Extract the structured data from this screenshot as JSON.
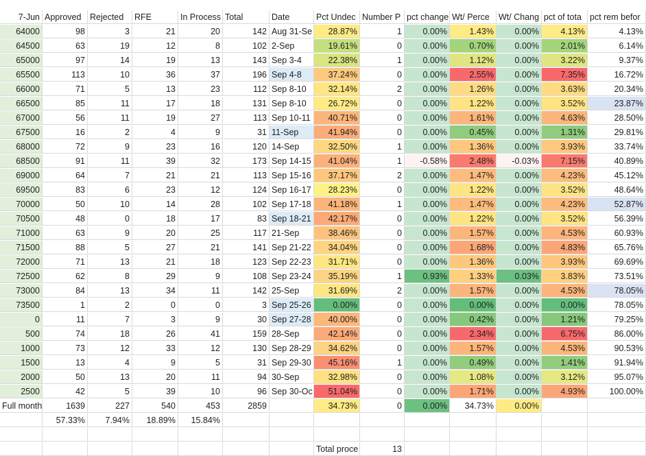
{
  "header": [
    "7-Jun",
    "Approved",
    "Rejected",
    "RFE",
    "In Process",
    "Total",
    "Date",
    "Pct Undec",
    "Number P",
    "pct change",
    "Wt/ Perce",
    "Wt/ Chang",
    "pct of tota",
    "pct rem befor"
  ],
  "rows": [
    [
      "64000",
      "98",
      "3",
      "21",
      "20",
      "142",
      "Aug 31-Se",
      "28.87%",
      "1",
      "0.00%",
      "1.43%",
      "0.00%",
      "4.13%",
      "4.13%"
    ],
    [
      "64500",
      "63",
      "19",
      "12",
      "8",
      "102",
      "2-Sep",
      "19.61%",
      "0",
      "0.00%",
      "0.70%",
      "0.00%",
      "2.01%",
      "6.14%"
    ],
    [
      "65000",
      "97",
      "14",
      "19",
      "13",
      "143",
      "Sep 3-4",
      "22.38%",
      "1",
      "0.00%",
      "1.12%",
      "0.00%",
      "3.22%",
      "9.37%"
    ],
    [
      "65500",
      "113",
      "10",
      "36",
      "37",
      "196",
      "Sep 4-8",
      "37.24%",
      "0",
      "0.00%",
      "2.55%",
      "0.00%",
      "7.35%",
      "16.72%"
    ],
    [
      "66000",
      "71",
      "5",
      "13",
      "23",
      "112",
      "Sep 8-10",
      "32.14%",
      "2",
      "0.00%",
      "1.26%",
      "0.00%",
      "3.63%",
      "20.34%"
    ],
    [
      "66500",
      "85",
      "11",
      "17",
      "18",
      "131",
      "Sep 8-10",
      "26.72%",
      "0",
      "0.00%",
      "1.22%",
      "0.00%",
      "3.52%",
      "23.87%"
    ],
    [
      "67000",
      "56",
      "11",
      "19",
      "27",
      "113",
      "Sep 10-11",
      "40.71%",
      "0",
      "0.00%",
      "1.61%",
      "0.00%",
      "4.63%",
      "28.50%"
    ],
    [
      "67500",
      "16",
      "2",
      "4",
      "9",
      "31",
      "11-Sep",
      "41.94%",
      "0",
      "0.00%",
      "0.45%",
      "0.00%",
      "1.31%",
      "29.81%"
    ],
    [
      "68000",
      "72",
      "9",
      "23",
      "16",
      "120",
      "14-Sep",
      "32.50%",
      "1",
      "0.00%",
      "1.36%",
      "0.00%",
      "3.93%",
      "33.74%"
    ],
    [
      "68500",
      "91",
      "11",
      "39",
      "32",
      "173",
      "Sep 14-15",
      "41.04%",
      "1",
      "-0.58%",
      "2.48%",
      "-0.03%",
      "7.15%",
      "40.89%"
    ],
    [
      "69000",
      "64",
      "7",
      "21",
      "21",
      "113",
      "Sep 15-16",
      "37.17%",
      "2",
      "0.00%",
      "1.47%",
      "0.00%",
      "4.23%",
      "45.12%"
    ],
    [
      "69500",
      "83",
      "6",
      "23",
      "12",
      "124",
      "Sep 16-17",
      "28.23%",
      "0",
      "0.00%",
      "1.22%",
      "0.00%",
      "3.52%",
      "48.64%"
    ],
    [
      "70000",
      "50",
      "10",
      "14",
      "28",
      "102",
      "Sep 17-18",
      "41.18%",
      "1",
      "0.00%",
      "1.47%",
      "0.00%",
      "4.23%",
      "52.87%"
    ],
    [
      "70500",
      "48",
      "0",
      "18",
      "17",
      "83",
      "Sep 18-21",
      "42.17%",
      "0",
      "0.00%",
      "1.22%",
      "0.00%",
      "3.52%",
      "56.39%"
    ],
    [
      "71000",
      "63",
      "9",
      "20",
      "25",
      "117",
      "21-Sep",
      "38.46%",
      "0",
      "0.00%",
      "1.57%",
      "0.00%",
      "4.53%",
      "60.93%"
    ],
    [
      "71500",
      "88",
      "5",
      "27",
      "21",
      "141",
      "Sep 21-22",
      "34.04%",
      "0",
      "0.00%",
      "1.68%",
      "0.00%",
      "4.83%",
      "65.76%"
    ],
    [
      "72000",
      "71",
      "13",
      "21",
      "18",
      "123",
      "Sep 22-23",
      "31.71%",
      "0",
      "0.00%",
      "1.36%",
      "0.00%",
      "3.93%",
      "69.69%"
    ],
    [
      "72500",
      "62",
      "8",
      "29",
      "9",
      "108",
      "Sep 23-24",
      "35.19%",
      "1",
      "0.93%",
      "1.33%",
      "0.03%",
      "3.83%",
      "73.51%"
    ],
    [
      "73000",
      "84",
      "13",
      "34",
      "11",
      "142",
      "25-Sep",
      "31.69%",
      "2",
      "0.00%",
      "1.57%",
      "0.00%",
      "4.53%",
      "78.05%"
    ],
    [
      "73500",
      "1",
      "2",
      "0",
      "0",
      "3",
      "Sep 25-26",
      "0.00%",
      "0",
      "0.00%",
      "0.00%",
      "0.00%",
      "0.00%",
      "78.05%"
    ],
    [
      "0",
      "11",
      "7",
      "3",
      "9",
      "30",
      "Sep 27-28",
      "40.00%",
      "0",
      "0.00%",
      "0.42%",
      "0.00%",
      "1.21%",
      "79.25%"
    ],
    [
      "500",
      "74",
      "18",
      "26",
      "41",
      "159",
      "28-Sep",
      "42.14%",
      "0",
      "0.00%",
      "2.34%",
      "0.00%",
      "6.75%",
      "86.00%"
    ],
    [
      "1000",
      "73",
      "12",
      "33",
      "12",
      "130",
      "Sep 28-29",
      "34.62%",
      "0",
      "0.00%",
      "1.57%",
      "0.00%",
      "4.53%",
      "90.53%"
    ],
    [
      "1500",
      "13",
      "4",
      "9",
      "5",
      "31",
      "Sep 29-30",
      "45.16%",
      "1",
      "0.00%",
      "0.49%",
      "0.00%",
      "1.41%",
      "91.94%"
    ],
    [
      "2000",
      "50",
      "13",
      "20",
      "11",
      "94",
      "30-Sep",
      "32.98%",
      "0",
      "0.00%",
      "1.08%",
      "0.00%",
      "3.12%",
      "95.07%"
    ],
    [
      "2500",
      "42",
      "5",
      "39",
      "10",
      "96",
      "Sep 30-Oc",
      "51.04%",
      "0",
      "0.00%",
      "1.71%",
      "0.00%",
      "4.93%",
      "100.00%"
    ]
  ],
  "full_month_row": [
    "Full month",
    "1639",
    "227",
    "540",
    "453",
    "2859",
    "",
    "34.73%",
    "0",
    "0.00%",
    "34.73%",
    "0.00%",
    "",
    ""
  ],
  "pct_row": [
    "",
    "57.33%",
    "7.94%",
    "18.89%",
    "15.84%",
    "",
    "",
    "",
    "",
    "",
    "",
    "",
    "",
    ""
  ],
  "total_row": [
    "",
    "",
    "",
    "",
    "",
    "",
    "",
    "Total proce",
    "13",
    "",
    "",
    "",
    "",
    ""
  ],
  "colors": {
    "grid": "#d9d9d9",
    "col_a_fill": "#e2efda",
    "date_blue": "#ddebf7",
    "col_j_fill": "#c6e6cf",
    "col_j_red": "#fdf3f3",
    "col_j_green": "#6cc080",
    "col_l_fill": "#c6e6cf",
    "col_l_green": "#6cc080",
    "col_n_blue": "#dae3f3",
    "undec": [
      "#ffeb84",
      "#c4df7d",
      "#d8e580",
      "#fdc97e",
      "#fee683",
      "#ffeb84",
      "#fcb57a",
      "#fbac78",
      "#fdd881",
      "#fcb07a",
      "#fdc87e",
      "#fff284",
      "#fcb579",
      "#fbaa77",
      "#fdc37d",
      "#fed481",
      "#fde783",
      "#fdd481",
      "#fee683",
      "#64be7b",
      "#fcb77a",
      "#fba977",
      "#fdd281",
      "#fb8f73",
      "#fde182",
      "#f8696b"
    ],
    "pct_of_total": [
      "#ffeb84",
      "#a4d47b",
      "#dfe681",
      "#f8696b",
      "#fedb82",
      "#fee482",
      "#fcb57a",
      "#8fcc7d",
      "#fdc87e",
      "#f97a6e",
      "#fdbc7d",
      "#fee482",
      "#fdbc7d",
      "#fee482",
      "#fcb57a",
      "#fba677",
      "#fdc87e",
      "#fed080",
      "#fcb57a",
      "#63be7b",
      "#86c97c",
      "#f8696b",
      "#fcb57a",
      "#92cd7d",
      "#e6e882",
      "#fba677"
    ],
    "full_month_undec": "#ffeb84",
    "full_month_pctchange": "#6cc080",
    "full_month_wtchange": "#ffeb84"
  }
}
